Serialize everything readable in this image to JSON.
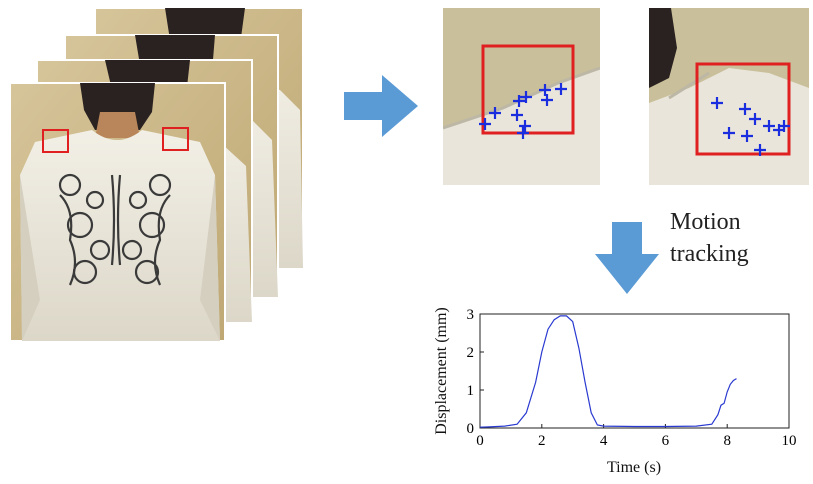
{
  "caption": {
    "line1": "Motion",
    "line2": "tracking"
  },
  "colors": {
    "arrow": "#5b9bd5",
    "roi_box": "#e02020",
    "marker": "#1a2ee0",
    "curve": "#2a3ad0",
    "shirt": "#ece8dc",
    "background_wall": "#cdb98a",
    "skin": "#b8865a",
    "hair": "#2a2220",
    "embroidery": "#3a3a3a"
  },
  "icons": {
    "process_arrow_right": "arrow-right-icon",
    "process_arrow_down": "arrow-down-icon",
    "marker": "plus-marker-icon"
  },
  "chart_data": {
    "type": "line",
    "xlabel": "Time (s)",
    "ylabel": "Displacement (mm)",
    "xlim": [
      0,
      10
    ],
    "ylim": [
      0,
      3
    ],
    "xticks": [
      "0",
      "2",
      "4",
      "6",
      "8",
      "10"
    ],
    "yticks": [
      "0",
      "1",
      "2",
      "3"
    ],
    "grid": false,
    "series": [
      {
        "x": [
          0,
          0.3,
          0.8,
          1.2,
          1.5,
          1.8,
          2.0,
          2.2,
          2.4,
          2.6,
          2.8,
          3.0,
          3.2,
          3.4,
          3.6,
          3.8,
          4.0,
          5.0,
          6.0,
          7.0,
          7.5,
          7.7,
          7.8,
          7.9,
          8.0,
          8.1,
          8.2,
          8.3
        ],
        "y": [
          0.02,
          0.03,
          0.05,
          0.1,
          0.4,
          1.2,
          2.0,
          2.6,
          2.85,
          2.95,
          2.95,
          2.8,
          2.1,
          1.2,
          0.4,
          0.08,
          0.05,
          0.04,
          0.04,
          0.05,
          0.1,
          0.35,
          0.6,
          0.65,
          0.95,
          1.15,
          1.25,
          1.3
        ]
      }
    ]
  }
}
